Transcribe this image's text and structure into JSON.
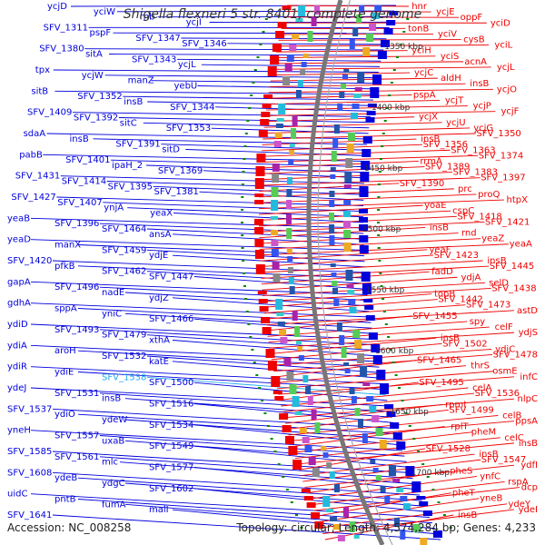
{
  "title": "Shigella flexneri 5 str. 8401, complete genome",
  "accession": "Accession: NC_008258",
  "summary": "Topology: circular; Length: 4,574,284 bp; Genes: 4,233",
  "colors": {
    "left": "#0000dd",
    "right": "#ee0000",
    "highlight": "#22aaee",
    "backbone": "#777777",
    "ticks": "#008800",
    "ruler": "#333333"
  },
  "ruler_labels": [
    "1350 kbp",
    "1400 kbp",
    "1450 kbp",
    "1500 kbp",
    "1550 kbp",
    "1600 kbp",
    "1650 kbp",
    "1700 kbp"
  ],
  "left_labels": [
    "ycjD",
    "yciW",
    "rnb",
    "ycjI",
    "SFV_1311",
    "pspF",
    "SFV_1347",
    "SFV_1346",
    "SFV_1380",
    "sitA",
    "SFV_1343",
    "ycjL",
    "tpx",
    "ycjW",
    "manZ",
    "yebU",
    "sitB",
    "SFV_1352",
    "insB",
    "SFV_1344",
    "SFV_1409",
    "SFV_1392",
    "sitC",
    "SFV_1353",
    "sdaA",
    "insB",
    "SFV_1391",
    "sitD",
    "pabB",
    "SFV_1401",
    "ipaH_2",
    "SFV_1369",
    "SFV_1431",
    "SFV_1414",
    "SFV_1395",
    "SFV_1381",
    "SFV_1427",
    "SFV_1407",
    "ynjA",
    "yeaX",
    "yeaB",
    "SFV_1396",
    "SFV_1464",
    "ansA",
    "yeaD",
    "manX",
    "SFV_1459",
    "ydjE",
    "SFV_1420",
    "pfkB",
    "SFV_1462",
    "SFV_1447",
    "gapA",
    "SFV_1496",
    "nadE",
    "ydjZ",
    "gdhA",
    "sppA",
    "yniC",
    "SFV_1466",
    "ydiD",
    "SFV_1493",
    "SFV_1479",
    "xthA",
    "ydiA",
    "aroH",
    "SFV_1532",
    "katE",
    "ydiR",
    "ydiE",
    "SFV_1538",
    "SFV_1500",
    "ydeJ",
    "SFV_1531",
    "insB",
    "SFV_1516",
    "SFV_1537",
    "ydiO",
    "ydeW",
    "SFV_1534",
    "yneH",
    "SFV_1557",
    "uxaB",
    "SFV_1549",
    "SFV_1585",
    "SFV_1561",
    "mlc",
    "SFV_1577",
    "SFV_1608",
    "ydeB",
    "ydgC",
    "SFV_1602",
    "uidC",
    "pntB",
    "fumA",
    "malI",
    "SFV_1641"
  ],
  "right_labels": [
    "hnr",
    "ycjE",
    "oppF",
    "yciD",
    "tonB",
    "yciV",
    "cysB",
    "yciL",
    "yciH",
    "yciS",
    "acnA",
    "ycjL",
    "ycjC",
    "aldH",
    "insB",
    "ycjO",
    "pspA",
    "ycjT",
    "ycjP",
    "ycjF",
    "ycjX",
    "ycjU",
    "ycjG",
    "SFV_1350",
    "insB",
    "SFV_1356",
    "SFV_1363",
    "SFV_1374",
    "rrmA",
    "SFV_1389",
    "SFV_1383",
    "SFV_1397",
    "SFV_1390",
    "prc",
    "proQ",
    "htpX",
    "yoaE",
    "cspC",
    "SFV_1418",
    "SFV_1421",
    "insB",
    "rnd",
    "yeaZ",
    "yeaA",
    "yeaF",
    "SFV_1423",
    "insB",
    "SFV_1445",
    "fadD",
    "ydjA",
    "selD",
    "SFV_1438",
    "topB",
    "SFV_1442",
    "SFV_1473",
    "astD",
    "SFV_1455",
    "spy",
    "celF",
    "ydjS",
    "insB",
    "SFV_1502",
    "ydjC",
    "SFV_1478",
    "SFV_1465",
    "thrS",
    "osmE",
    "infC",
    "SFV_1495",
    "celA",
    "SFV_1536",
    "nlpC",
    "rpmI",
    "SFV_1499",
    "celB",
    "ppsA",
    "rplT",
    "pheM",
    "celC",
    "insB",
    "SFV_1528",
    "insB",
    "SFV_1547",
    "ydfI",
    "pheS",
    "ynfC",
    "rspA",
    "dcp",
    "pheT",
    "yneB",
    "ydeY",
    "ydeI",
    "insB"
  ]
}
